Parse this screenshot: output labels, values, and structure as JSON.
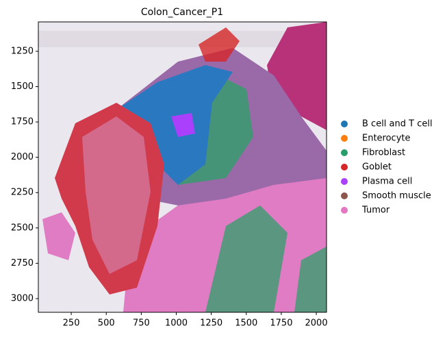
{
  "chart_data": {
    "type": "scatter",
    "title": "Colon_Cancer_P1",
    "series": [
      {
        "name": "B cell and T cell",
        "color": "#1f77b4"
      },
      {
        "name": "Enterocyte",
        "color": "#ff7f0e"
      },
      {
        "name": "Fibroblast",
        "color": "#279e68"
      },
      {
        "name": "Goblet",
        "color": "#d62728"
      },
      {
        "name": "Plasma cell",
        "color": "#aa40fc"
      },
      {
        "name": "Smooth muscle",
        "color": "#8c564b"
      },
      {
        "name": "Tumor",
        "color": "#e377c2"
      }
    ],
    "xlim": [
      15,
      2073
    ],
    "xticks": [
      250,
      500,
      750,
      1000,
      1250,
      1500,
      1750,
      2000
    ],
    "ylim": [
      3097,
      1042
    ],
    "yticks": [
      1250,
      1500,
      1750,
      2000,
      2250,
      2500,
      2750,
      3000
    ],
    "legend": "right"
  }
}
